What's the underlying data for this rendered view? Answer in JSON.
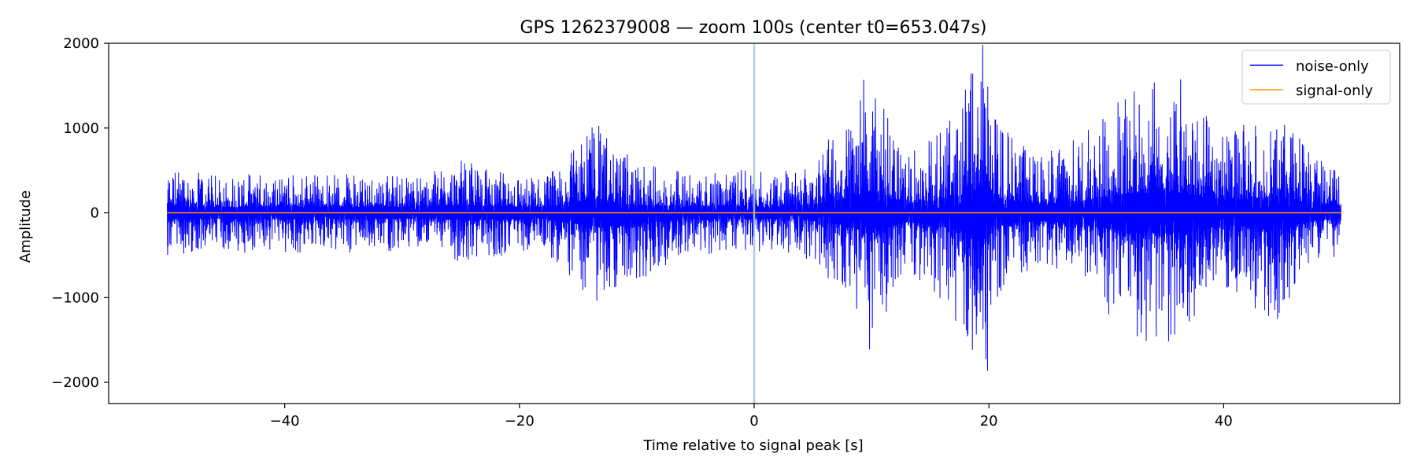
{
  "chart_data": {
    "type": "line",
    "title": "GPS 1262379008 — zoom 100s (center t0=653.047s)",
    "xlabel": "Time relative to signal peak [s]",
    "ylabel": "Amplitude",
    "xlim": [
      -55,
      55
    ],
    "ylim": [
      -2250,
      2000
    ],
    "xticks": [
      -40,
      -20,
      0,
      20,
      40
    ],
    "yticks": [
      2000,
      1000,
      0,
      -1000,
      -2000
    ],
    "xtick_labels": [
      "−40",
      "−20",
      "0",
      "20",
      "40"
    ],
    "ytick_labels": [
      "2000",
      "1000",
      "0",
      "−1000",
      "−2000"
    ],
    "vline_x": 0,
    "legend_position": "top-right",
    "series": [
      {
        "name": "noise-only",
        "color": "#0000ff",
        "x_range": [
          -50,
          50
        ],
        "envelope": [
          {
            "t": -50,
            "max": 540,
            "min": -500
          },
          {
            "t": -46,
            "max": 450,
            "min": -450
          },
          {
            "t": -40,
            "max": 480,
            "min": -500
          },
          {
            "t": -34,
            "max": 470,
            "min": -470
          },
          {
            "t": -28,
            "max": 450,
            "min": -440
          },
          {
            "t": -25,
            "max": 620,
            "min": -580
          },
          {
            "t": -22,
            "max": 500,
            "min": -520
          },
          {
            "t": -18,
            "max": 420,
            "min": -430
          },
          {
            "t": -15,
            "max": 790,
            "min": -880
          },
          {
            "t": -14,
            "max": 1160,
            "min": -1080
          },
          {
            "t": -10,
            "max": 580,
            "min": -820
          },
          {
            "t": -6,
            "max": 500,
            "min": -500
          },
          {
            "t": -2,
            "max": 520,
            "min": -480
          },
          {
            "t": 0,
            "max": 490,
            "min": -470
          },
          {
            "t": 4,
            "max": 520,
            "min": -500
          },
          {
            "t": 8,
            "max": 1120,
            "min": -970
          },
          {
            "t": 9.8,
            "max": 1730,
            "min": -1630
          },
          {
            "t": 13,
            "max": 650,
            "min": -660
          },
          {
            "t": 17,
            "max": 1160,
            "min": -1240
          },
          {
            "t": 19.7,
            "max": 2120,
            "min": -2050
          },
          {
            "t": 21,
            "max": 1090,
            "min": -970
          },
          {
            "t": 24,
            "max": 650,
            "min": -600
          },
          {
            "t": 28,
            "max": 930,
            "min": -870
          },
          {
            "t": 32.2,
            "max": 1530,
            "min": -1540
          },
          {
            "t": 36.2,
            "max": 1600,
            "min": -1590
          },
          {
            "t": 40,
            "max": 900,
            "min": -900
          },
          {
            "t": 44.2,
            "max": 1270,
            "min": -1330
          },
          {
            "t": 48,
            "max": 620,
            "min": -550
          },
          {
            "t": 50,
            "max": 560,
            "min": -520
          }
        ]
      },
      {
        "name": "signal-only",
        "color": "#ff9900",
        "x": [
          -50,
          50
        ],
        "y": [
          0,
          0
        ]
      }
    ],
    "vline_color": "#a9c6e3"
  }
}
